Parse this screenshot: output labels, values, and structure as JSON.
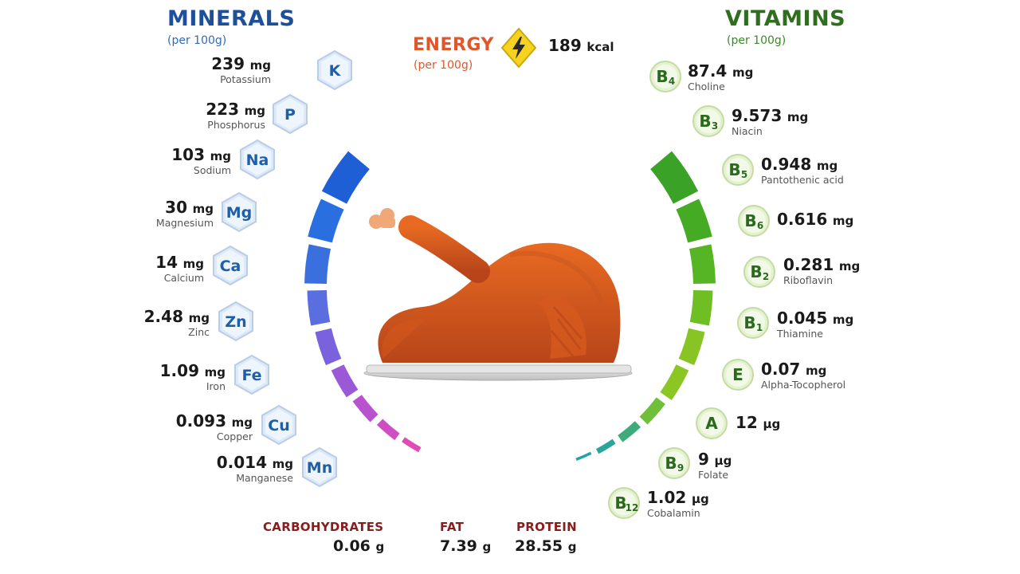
{
  "minerals": {
    "title": "MINERALS",
    "subtitle": "(per 100g)",
    "items": [
      {
        "symbol": "K",
        "amount": "239",
        "unit": "mg",
        "name": "Potassium"
      },
      {
        "symbol": "P",
        "amount": "223",
        "unit": "mg",
        "name": "Phosphorus"
      },
      {
        "symbol": "Na",
        "amount": "103",
        "unit": "mg",
        "name": "Sodium"
      },
      {
        "symbol": "Mg",
        "amount": "30",
        "unit": "mg",
        "name": "Magnesium"
      },
      {
        "symbol": "Ca",
        "amount": "14",
        "unit": "mg",
        "name": "Calcium"
      },
      {
        "symbol": "Zn",
        "amount": "2.48",
        "unit": "mg",
        "name": "Zinc"
      },
      {
        "symbol": "Fe",
        "amount": "1.09",
        "unit": "mg",
        "name": "Iron"
      },
      {
        "symbol": "Cu",
        "amount": "0.093",
        "unit": "mg",
        "name": "Copper"
      },
      {
        "symbol": "Mn",
        "amount": "0.014",
        "unit": "mg",
        "name": "Manganese"
      }
    ]
  },
  "vitamins": {
    "title": "VITAMINS",
    "subtitle": "(per 100g)",
    "items": [
      {
        "letter": "B",
        "sub": "4",
        "amount": "87.4",
        "unit": "mg",
        "name": "Choline"
      },
      {
        "letter": "B",
        "sub": "3",
        "amount": "9.573",
        "unit": "mg",
        "name": "Niacin"
      },
      {
        "letter": "B",
        "sub": "5",
        "amount": "0.948",
        "unit": "mg",
        "name": "Pantothenic acid"
      },
      {
        "letter": "B",
        "sub": "6",
        "amount": "0.616",
        "unit": "mg",
        "name": ""
      },
      {
        "letter": "B",
        "sub": "2",
        "amount": "0.281",
        "unit": "mg",
        "name": "Riboflavin"
      },
      {
        "letter": "B",
        "sub": "1",
        "amount": "0.045",
        "unit": "mg",
        "name": "Thiamine"
      },
      {
        "letter": "E",
        "sub": "",
        "amount": "0.07",
        "unit": "mg",
        "name": "Alpha-Tocopherol"
      },
      {
        "letter": "A",
        "sub": "",
        "amount": "12",
        "unit": "µg",
        "name": ""
      },
      {
        "letter": "B",
        "sub": "9",
        "amount": "9",
        "unit": "µg",
        "name": "Folate"
      },
      {
        "letter": "B",
        "sub": "12",
        "amount": "1.02",
        "unit": "µg",
        "name": "Cobalamin"
      }
    ]
  },
  "energy": {
    "title": "ENERGY",
    "subtitle": "(per 100g)",
    "amount": "189",
    "unit": "kcal",
    "icon": "lightning-icon"
  },
  "macros": [
    {
      "name": "CARBOHYDRATES",
      "amount": "0.06",
      "unit": "g"
    },
    {
      "name": "FAT",
      "amount": "7.39",
      "unit": "g"
    },
    {
      "name": "PROTEIN",
      "amount": "28.55",
      "unit": "g"
    }
  ],
  "colors": {
    "minerals_heading": "#1d4f9a",
    "vitamins_heading": "#2e6e1e",
    "energy_heading": "#e0562a",
    "macro_heading": "#8a1c1c"
  }
}
